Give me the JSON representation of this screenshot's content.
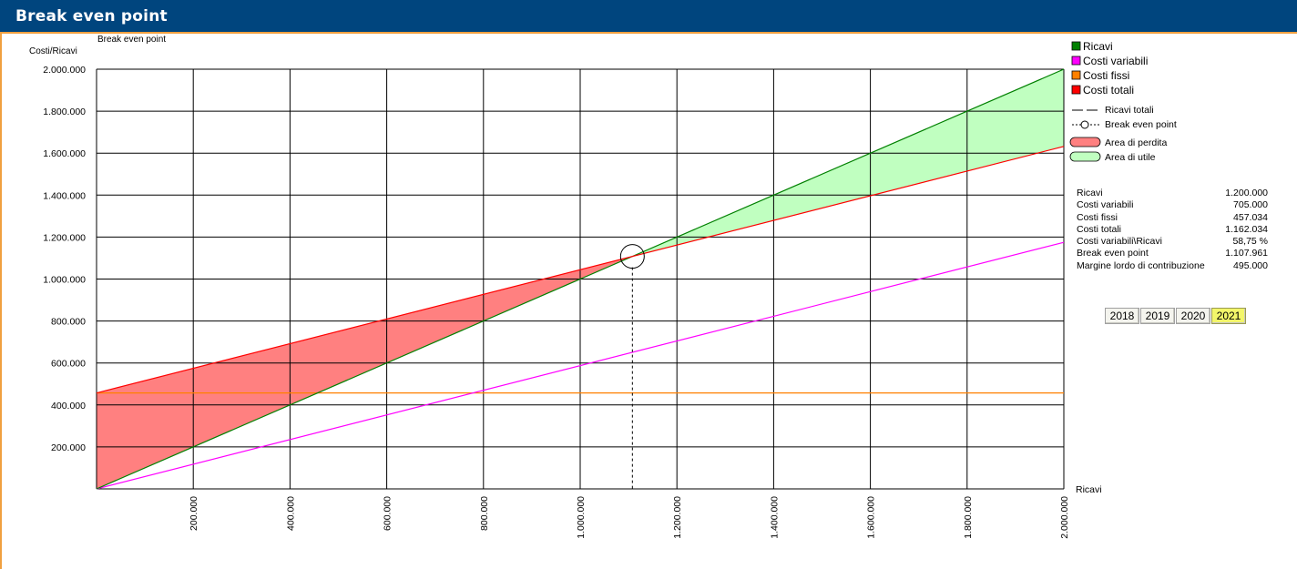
{
  "window": {
    "title": "Break even point"
  },
  "chart_data": {
    "type": "line",
    "title": "Break even point",
    "ylabel": "Costi/Ricavi",
    "xlabel": "Ricavi",
    "xlim": [
      0,
      2000000
    ],
    "ylim": [
      0,
      2000000
    ],
    "x_ticks": [
      "200.000",
      "400.000",
      "600.000",
      "800.000",
      "1.000.000",
      "1.200.000",
      "1.400.000",
      "1.600.000",
      "1.800.000",
      "2.000.000"
    ],
    "x_tick_values": [
      200000,
      400000,
      600000,
      800000,
      1000000,
      1200000,
      1400000,
      1600000,
      1800000,
      2000000
    ],
    "y_ticks": [
      "200.000",
      "400.000",
      "600.000",
      "800.000",
      "1.000.000",
      "1.200.000",
      "1.400.000",
      "1.600.000",
      "1.800.000",
      "2.000.000"
    ],
    "y_tick_values": [
      200000,
      400000,
      600000,
      800000,
      1000000,
      1200000,
      1400000,
      1600000,
      1800000,
      2000000
    ],
    "grid": true,
    "series": [
      {
        "name": "Ricavi",
        "color": "#008000",
        "x": [
          0,
          2000000
        ],
        "y": [
          0,
          2000000
        ]
      },
      {
        "name": "Costi variabili",
        "color": "#ff00ff",
        "x": [
          0,
          2000000
        ],
        "y": [
          0,
          1175000
        ]
      },
      {
        "name": "Costi fissi",
        "color": "#ff8000",
        "x": [
          0,
          2000000
        ],
        "y": [
          457034,
          457034
        ]
      },
      {
        "name": "Costi totali",
        "color": "#ff0000",
        "x": [
          0,
          2000000
        ],
        "y": [
          457034,
          1632034
        ]
      }
    ],
    "break_even_point": {
      "x": 1107961,
      "y": 1107961
    },
    "areas": [
      {
        "name": "Area di perdita",
        "color": "#ff8080"
      },
      {
        "name": "Area di utile",
        "color": "#c0ffc0"
      }
    ],
    "legend": {
      "placement": "right",
      "items": [
        {
          "label": "Ricavi",
          "color": "#008000"
        },
        {
          "label": "Costi variabili",
          "color": "#ff00ff"
        },
        {
          "label": "Costi fissi",
          "color": "#ff8000"
        },
        {
          "label": "Costi totali",
          "color": "#ff0000"
        }
      ],
      "sub_items": [
        {
          "label": "Ricavi totali"
        },
        {
          "label": "Break even point"
        },
        {
          "label": "Area di perdita",
          "color": "#ff8080"
        },
        {
          "label": "Area di utile",
          "color": "#c0ffc0"
        }
      ]
    }
  },
  "stats": [
    {
      "label": "Ricavi",
      "value": "1.200.000"
    },
    {
      "label": "Costi variabili",
      "value": "705.000"
    },
    {
      "label": "Costi fissi",
      "value": "457.034"
    },
    {
      "label": "Costi totali",
      "value": "1.162.034"
    },
    {
      "label": "Costi variabili\\Ricavi",
      "value": "58,75 %"
    },
    {
      "label": "Break even point",
      "value": "1.107.961"
    },
    {
      "label": "Margine lordo di contribuzione",
      "value": "495.000"
    }
  ],
  "years": [
    {
      "label": "2018",
      "active": false
    },
    {
      "label": "2019",
      "active": false
    },
    {
      "label": "2020",
      "active": false
    },
    {
      "label": "2021",
      "active": true
    }
  ]
}
